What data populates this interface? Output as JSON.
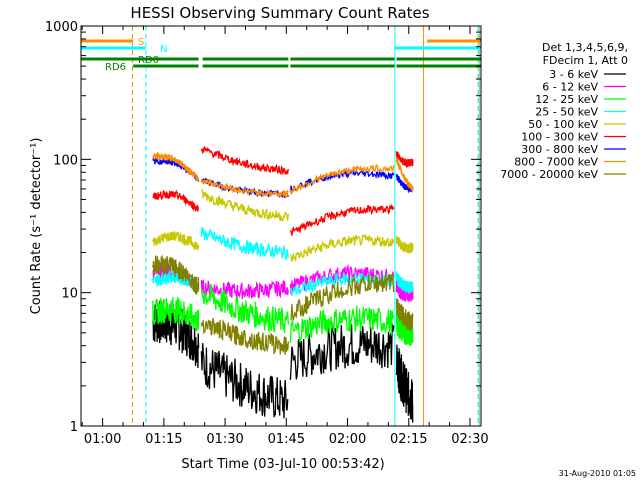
{
  "chart_data": {
    "type": "line",
    "title": "HESSI Observing Summary Count Rates",
    "xlabel": "Start Time (03-Jul-10 00:53:42)",
    "ylabel": "Count Rate (s⁻¹ detector⁻¹)",
    "y_scale": "log",
    "ylim": [
      1,
      1000
    ],
    "xlim_minutes": [
      54.7,
      152.7
    ],
    "x_ticks": [
      {
        "label": "01:00",
        "min": 60
      },
      {
        "label": "01:15",
        "min": 75
      },
      {
        "label": "01:30",
        "min": 90
      },
      {
        "label": "01:45",
        "min": 105
      },
      {
        "label": "02:00",
        "min": 120
      },
      {
        "label": "02:15",
        "min": 135
      },
      {
        "label": "02:30",
        "min": 150
      }
    ],
    "y_ticks": [
      {
        "label": "1",
        "value": 1
      },
      {
        "label": "10",
        "value": 10
      },
      {
        "label": "100",
        "value": 100
      },
      {
        "label": "1000",
        "value": 1000
      }
    ],
    "legend_header": [
      "Det 1,3,4,5,6,9,",
      "FDecim 1, Att 0"
    ],
    "legend_position": "right",
    "series": [
      {
        "name": "3 - 6 keV",
        "color": "#000000"
      },
      {
        "name": "6 - 12 keV",
        "color": "#ff00ff"
      },
      {
        "name": "12 - 25 keV",
        "color": "#00ff00"
      },
      {
        "name": "25 - 50 keV",
        "color": "#00ffff"
      },
      {
        "name": "50 - 100 keV",
        "color": "#c8c800"
      },
      {
        "name": "100 - 300 keV",
        "color": "#ff0000"
      },
      {
        "name": "300 - 800 keV",
        "color": "#0000ff"
      },
      {
        "name": "800 - 7000 keV",
        "color": "#ff8c00"
      },
      {
        "name": "7000 - 20000 keV",
        "color": "#808000"
      }
    ],
    "flags": [
      {
        "label": "S",
        "color": "#ff8c00",
        "segments": [
          [
            54.7,
            67.5
          ],
          [
            139.5,
            152.7
          ]
        ]
      },
      {
        "label": "N",
        "color": "#00ffff",
        "segments": [
          [
            54.7,
            70.5
          ],
          [
            131.5,
            152.7
          ]
        ]
      },
      {
        "label": "RD0",
        "color": "#008000",
        "segments": [
          [
            54.7,
            83.5
          ],
          [
            84.5,
            105.5
          ],
          [
            106.0,
            131.5
          ],
          [
            132.0,
            152.7
          ]
        ]
      },
      {
        "label": "RD6",
        "color": "#008000",
        "segments": [
          [
            67.5,
            83.5
          ],
          [
            84.5,
            105.5
          ],
          [
            106.0,
            131.5
          ],
          [
            132.0,
            152.7
          ]
        ]
      }
    ],
    "vlines": [
      {
        "min": 67.3,
        "color": "#ff8c00",
        "style": "dashed"
      },
      {
        "min": 70.6,
        "color": "#00ffff",
        "style": "dashed"
      },
      {
        "min": 131.6,
        "color": "#00ffff",
        "style": "solid"
      },
      {
        "min": 138.6,
        "color": "#ff8c00",
        "style": "solid"
      },
      {
        "min": 152.3,
        "color": "#00ffff",
        "style": "solid"
      },
      {
        "min": 152.0,
        "color": "#ff8c00",
        "style": "dashed"
      }
    ],
    "intervals": [
      [
        72.3,
        83.5
      ],
      [
        84.2,
        105.5
      ],
      [
        106.0,
        131.3
      ],
      [
        132.0,
        136.0
      ]
    ],
    "levels": {
      "300 - 800 keV": [
        [
          95,
          70
        ],
        [
          70,
          55
        ],
        [
          60,
          75
        ],
        [
          75,
          60
        ]
      ],
      "100 - 300 keV": [
        [
          52,
          42
        ],
        [
          120,
          82
        ],
        [
          28,
          42
        ],
        [
          110,
          95
        ]
      ],
      "800 - 7000 keV": [
        [
          105,
          70
        ],
        [
          70,
          55
        ],
        [
          58,
          85
        ],
        [
          100,
          60
        ]
      ],
      "50 - 100 keV": [
        [
          24,
          22
        ],
        [
          55,
          37
        ],
        [
          18,
          24
        ],
        [
          25,
          22
        ]
      ],
      "25 - 50 keV": [
        [
          12,
          11
        ],
        [
          28,
          20
        ],
        [
          10,
          12
        ],
        [
          13,
          11
        ]
      ],
      "6 - 12 keV": [
        [
          14,
          11
        ],
        [
          11,
          11
        ],
        [
          11,
          13
        ],
        [
          11,
          10
        ]
      ],
      "7000 - 20000 keV": [
        [
          16,
          11
        ],
        [
          6,
          4
        ],
        [
          7,
          12
        ],
        [
          8,
          6
        ]
      ],
      "12 - 25 keV": [
        [
          7,
          6
        ],
        [
          10,
          6
        ],
        [
          5,
          6
        ],
        [
          6,
          5
        ]
      ],
      "3 - 6 keV": [
        [
          6,
          4
        ],
        [
          3,
          1.5
        ],
        [
          3,
          4
        ],
        [
          3,
          1.5
        ]
      ]
    }
  },
  "footer": {
    "timestamp": "31-Aug-2010 01:05"
  }
}
